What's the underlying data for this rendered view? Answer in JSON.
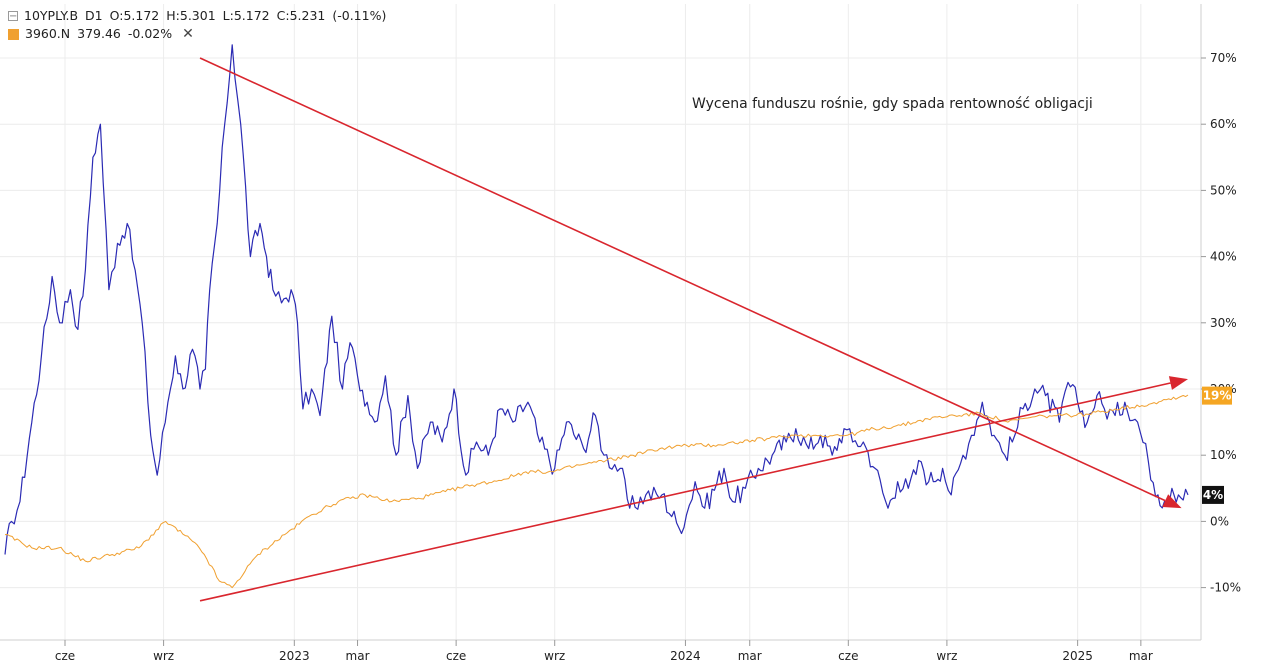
{
  "legend": {
    "collapse_symbol": "[-]",
    "series1": {
      "symbol": "10YPLY.B",
      "interval": "D1",
      "o": "O:5.172",
      "h": "H:5.301",
      "l": "L:5.172",
      "c": "C:5.231",
      "change": "(-0.11%)"
    },
    "series2": {
      "symbol": "3960.N",
      "price": "379.46",
      "change": "-0.02%",
      "close_symbol": "✕"
    }
  },
  "annotation": "Wycena funduszu rośnie, gdy spada rentowność obligacji",
  "colors": {
    "bond": "#2b2bb4",
    "fund": "#f0a030",
    "arrow": "#d9262e",
    "grid": "#ececec",
    "badge_fund": "#f5a623",
    "badge_bond": "#111111"
  },
  "chart_data": {
    "type": "line",
    "ylim": [
      -17,
      78
    ],
    "y_ticks": [
      -10,
      0,
      10,
      20,
      30,
      40,
      50,
      60,
      70
    ],
    "y_tick_labels": [
      "-10%",
      "0%",
      "10%",
      "20%",
      "30%",
      "40%",
      "50%",
      "60%",
      "70%"
    ],
    "x_ticks": [
      {
        "label": "cze",
        "date": "2022-06-01"
      },
      {
        "label": "wrz",
        "date": "2022-09-01"
      },
      {
        "label": "2023",
        "date": "2023-01-01"
      },
      {
        "label": "mar",
        "date": "2023-03-01"
      },
      {
        "label": "cze",
        "date": "2023-06-01"
      },
      {
        "label": "wrz",
        "date": "2023-09-01"
      },
      {
        "label": "2024",
        "date": "2024-01-01"
      },
      {
        "label": "mar",
        "date": "2024-03-01"
      },
      {
        "label": "cze",
        "date": "2024-06-01"
      },
      {
        "label": "wrz",
        "date": "2024-09-01"
      },
      {
        "label": "2025",
        "date": "2025-01-01"
      },
      {
        "label": "mar",
        "date": "2025-03-01"
      }
    ],
    "x_range": [
      "2022-04-06",
      "2025-04-14"
    ],
    "series": [
      {
        "id": "bond",
        "x": [
          "2022-04-06",
          "2022-04-12",
          "2022-04-20",
          "2022-05-01",
          "2022-05-10",
          "2022-05-20",
          "2022-05-27",
          "2022-06-06",
          "2022-06-13",
          "2022-06-20",
          "2022-06-27",
          "2022-07-04",
          "2022-07-12",
          "2022-07-20",
          "2022-07-29",
          "2022-08-08",
          "2022-08-12",
          "2022-08-20",
          "2022-08-26",
          "2022-09-05",
          "2022-09-12",
          "2022-09-19",
          "2022-09-28",
          "2022-10-05",
          "2022-10-10",
          "2022-10-14",
          "2022-10-21",
          "2022-10-28",
          "2022-11-04",
          "2022-11-12",
          "2022-11-21",
          "2022-11-30",
          "2022-12-06",
          "2022-12-12",
          "2022-12-20",
          "2022-12-29",
          "2023-01-04",
          "2023-01-09",
          "2023-01-17",
          "2023-01-25",
          "2023-02-05",
          "2023-02-15",
          "2023-02-22",
          "2023-03-01",
          "2023-03-10",
          "2023-03-17",
          "2023-03-27",
          "2023-04-06",
          "2023-04-17",
          "2023-04-26",
          "2023-05-08",
          "2023-05-19",
          "2023-05-30",
          "2023-06-10",
          "2023-06-20",
          "2023-07-01",
          "2023-07-12",
          "2023-07-24",
          "2023-08-07",
          "2023-08-18",
          "2023-09-01",
          "2023-09-12",
          "2023-09-28",
          "2023-10-09",
          "2023-10-17",
          "2023-11-01",
          "2023-11-10",
          "2023-11-25",
          "2023-12-10",
          "2023-12-26",
          "2024-01-02",
          "2024-01-10",
          "2024-01-19",
          "2024-02-06",
          "2024-02-14",
          "2024-02-26",
          "2024-03-09",
          "2024-03-22",
          "2024-04-04",
          "2024-04-13",
          "2024-04-25",
          "2024-05-06",
          "2024-05-17",
          "2024-05-28",
          "2024-06-05",
          "2024-06-15",
          "2024-06-26",
          "2024-07-08",
          "2024-07-17",
          "2024-07-27",
          "2024-08-08",
          "2024-08-15",
          "2024-08-28",
          "2024-09-05",
          "2024-09-16",
          "2024-09-24",
          "2024-10-04",
          "2024-10-15",
          "2024-10-25",
          "2024-11-01",
          "2024-11-11",
          "2024-11-22",
          "2024-12-02",
          "2024-12-15",
          "2024-12-23",
          "2025-01-01",
          "2025-01-10",
          "2025-01-19",
          "2025-01-26",
          "2025-02-05",
          "2025-02-14",
          "2025-02-26",
          "2025-03-08",
          "2025-03-17",
          "2025-03-23",
          "2025-03-30",
          "2025-04-05",
          "2025-04-14"
        ],
        "y": [
          -5,
          0,
          3,
          15,
          25,
          37,
          30,
          35,
          29,
          38,
          55,
          60,
          35,
          42,
          45,
          35,
          30,
          13,
          7,
          18,
          25,
          20,
          26,
          20,
          23,
          35,
          45,
          60,
          72,
          60,
          40,
          45,
          40,
          35,
          33,
          35,
          30,
          17,
          20,
          16,
          31,
          20,
          27,
          22,
          18,
          15,
          22,
          10,
          19,
          8,
          15,
          12,
          20,
          7,
          12,
          10,
          17,
          15,
          18,
          12,
          8,
          15,
          11,
          16,
          10,
          8,
          2,
          4,
          4,
          -1,
          1,
          6,
          2,
          8,
          3,
          5,
          8,
          10,
          12,
          14,
          11,
          13,
          10,
          14,
          12,
          12,
          8,
          2,
          6,
          5,
          9,
          6,
          8,
          4,
          10,
          13,
          18,
          13,
          10,
          12,
          17,
          20,
          19,
          15,
          21,
          18,
          15,
          19,
          17,
          16,
          18,
          15,
          9,
          4,
          3,
          5,
          4,
          4
        ]
      },
      {
        "id": "fund",
        "x": [
          "2022-04-06",
          "2022-05-01",
          "2022-05-26",
          "2022-06-20",
          "2022-07-15",
          "2022-08-09",
          "2022-09-03",
          "2022-09-28",
          "2022-10-09",
          "2022-10-23",
          "2022-11-04",
          "2022-11-28",
          "2022-12-23",
          "2023-01-17",
          "2023-02-11",
          "2023-03-08",
          "2023-04-02",
          "2023-04-27",
          "2023-05-22",
          "2023-06-16",
          "2023-07-11",
          "2023-08-05",
          "2023-08-30",
          "2023-09-24",
          "2023-10-19",
          "2023-11-13",
          "2023-12-08",
          "2024-01-02",
          "2024-01-27",
          "2024-02-21",
          "2024-03-17",
          "2024-04-11",
          "2024-05-06",
          "2024-05-31",
          "2024-06-25",
          "2024-07-20",
          "2024-08-14",
          "2024-09-08",
          "2024-10-03",
          "2024-10-28",
          "2024-11-22",
          "2024-12-17",
          "2025-01-11",
          "2025-02-05",
          "2025-03-02",
          "2025-03-27",
          "2025-04-14"
        ],
        "y": [
          -2,
          -4,
          -4,
          -6,
          -5,
          -4,
          0,
          -3,
          -5,
          -9,
          -10,
          -5,
          -2,
          1,
          3,
          4,
          3,
          3.5,
          4.5,
          5.5,
          6.2,
          7.5,
          7.5,
          8.5,
          9.2,
          10,
          11,
          11.5,
          11.5,
          12,
          12.5,
          13,
          13,
          13,
          14,
          14.5,
          15.5,
          16,
          16.3,
          15,
          15.8,
          16,
          16.2,
          17,
          17.5,
          18.5,
          19.1
        ]
      }
    ],
    "last_value_badges": [
      {
        "series": "fund",
        "label": "19%",
        "value": 19
      },
      {
        "series": "bond",
        "label": "4%",
        "value": 4
      }
    ],
    "trend_arrows": [
      {
        "from": [
          "2022-10-05",
          70
        ],
        "to": [
          "2025-04-08",
          2
        ]
      },
      {
        "from": [
          "2022-10-05",
          -12
        ],
        "to": [
          "2025-04-14",
          21.5
        ]
      }
    ]
  }
}
